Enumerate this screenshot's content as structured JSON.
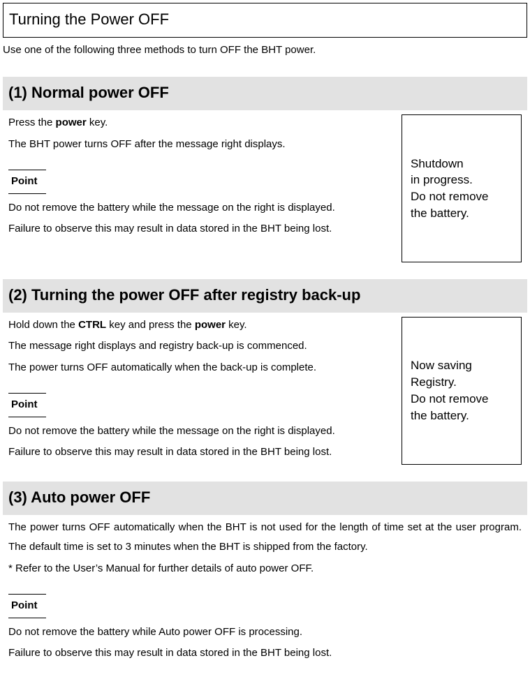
{
  "page": {
    "title": "Turning the Power OFF",
    "intro": "Use one of the following three methods to turn OFF the BHT power."
  },
  "section1": {
    "header": "(1) Normal power OFF",
    "line1_pre": "Press the ",
    "line1_key": "power",
    "line1_post": " key.",
    "line2": "The BHT power turns OFF after the message right displays.",
    "point_label": "Point",
    "point1": "Do not remove the battery while the message on the right is displayed.",
    "point2": "Failure to observe this may result in data stored in the BHT being lost.",
    "screen": {
      "l1": "Shutdown",
      "l2": "in progress.",
      "l3": "Do not remove",
      "l4": "the battery."
    }
  },
  "section2": {
    "header": "(2) Turning the power OFF after registry back-up",
    "line1_pre": "Hold down the ",
    "line1_key1": "CTRL",
    "line1_mid": " key and press the ",
    "line1_key2": "power",
    "line1_post": " key.",
    "line2": "The message right displays and registry back-up is commenced.",
    "line3": "The power turns OFF automatically when the back-up is complete.",
    "point_label": "Point",
    "point1": "Do not remove the battery while the message on the right is displayed.",
    "point2": "Failure to observe this may result in data stored in the BHT being lost.",
    "screen": {
      "l1": "Now saving",
      "l2": "Registry.",
      "l3": "Do not remove",
      "l4": "the battery."
    }
  },
  "section3": {
    "header": "(3) Auto power OFF",
    "line1": "The power turns OFF automatically when the BHT is not used for the length of time set at the user program. The default time is set to 3 minutes when the BHT is shipped from the factory.",
    "line2": "* Refer to the User’s Manual for further details of auto power OFF.",
    "point_label": "Point",
    "point1": "Do not remove the battery while Auto power OFF is processing.",
    "point2": "Failure to observe this may result in data stored in the BHT being lost."
  }
}
